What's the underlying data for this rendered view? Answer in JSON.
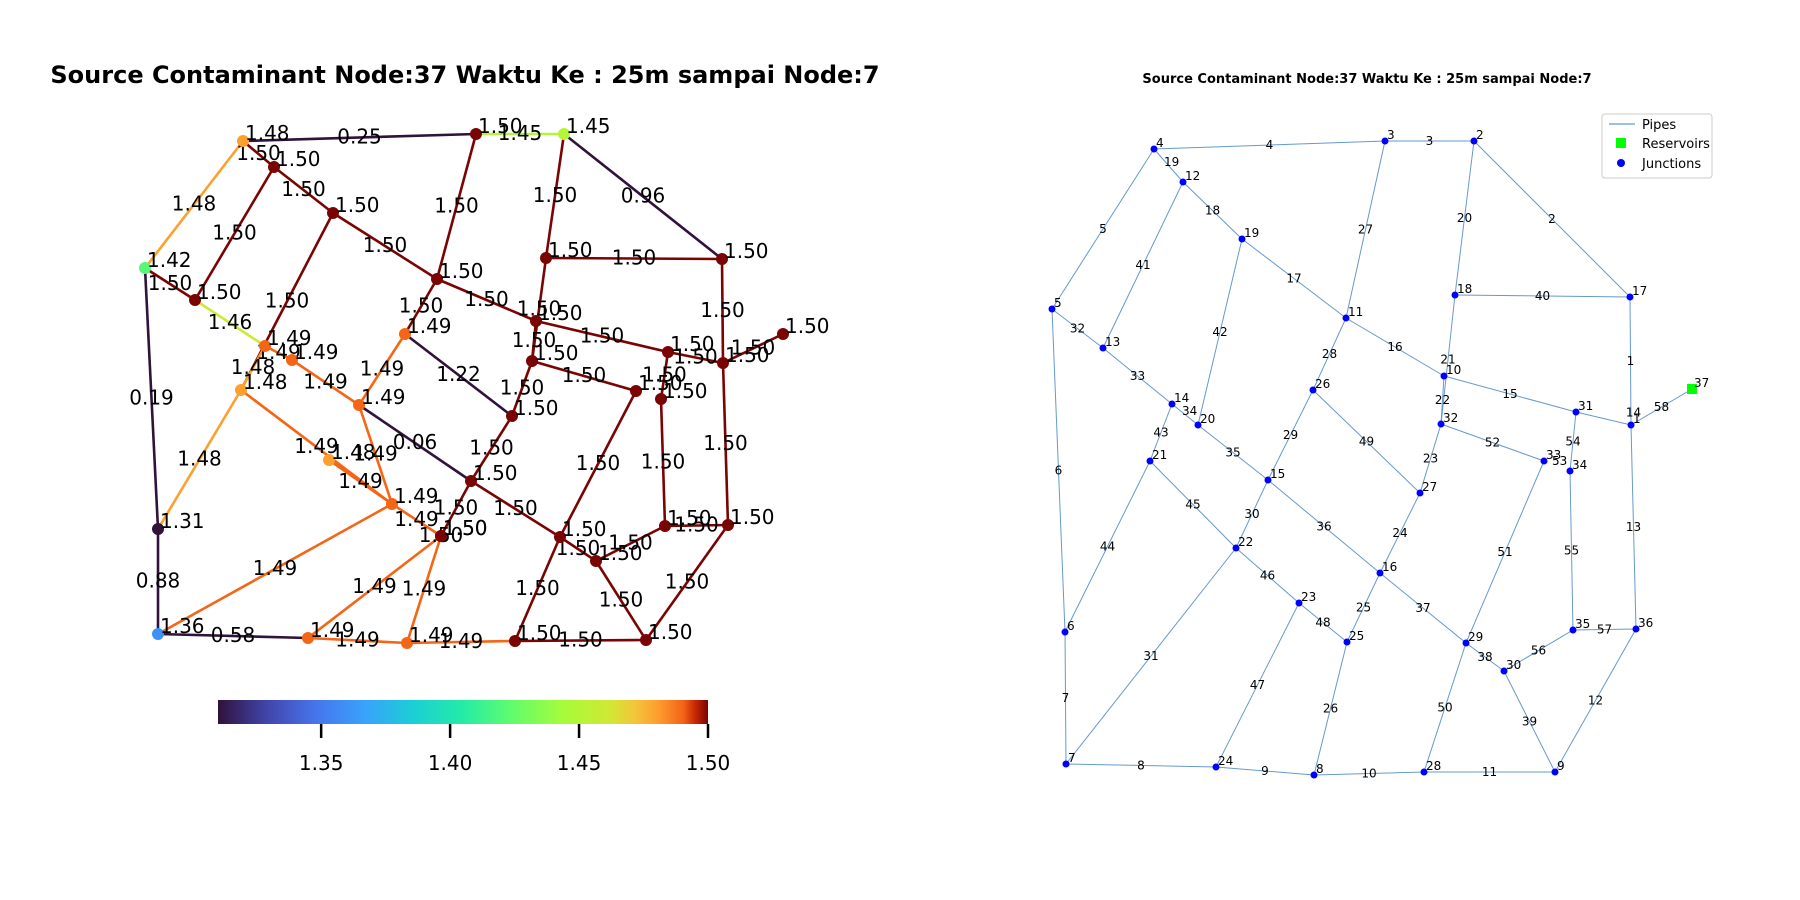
{
  "left_panel": {
    "title": "Source Contaminant Node:37 Waktu Ke : 25m sampai Node:7",
    "nodes": [
      {
        "id": "n_4",
        "value": "1.48",
        "c": 1.48
      },
      {
        "id": "n_3",
        "value": "1.50",
        "c": 1.5
      },
      {
        "id": "n_2",
        "value": "1.45",
        "c": 1.45
      },
      {
        "id": "n_12",
        "value": "1.50",
        "c": 1.5
      },
      {
        "id": "n_19",
        "value": "1.50",
        "c": 1.5
      },
      {
        "id": "n_5",
        "value": "1.42",
        "c": 1.42
      },
      {
        "id": "n_13",
        "value": "1.50",
        "c": 1.5
      },
      {
        "id": "n_11",
        "value": "1.50",
        "c": 1.5
      },
      {
        "id": "n_18",
        "value": "1.50",
        "c": 1.5
      },
      {
        "id": "n_17",
        "value": "1.50",
        "c": 1.5
      },
      {
        "id": "n_37",
        "value": "1.50",
        "c": 1.5
      },
      {
        "id": "n_14",
        "value": "1.49",
        "c": 1.49
      },
      {
        "id": "n_34",
        "value": "1.49",
        "c": 1.49
      },
      {
        "id": "n_20",
        "value": "1.48",
        "c": 1.48
      },
      {
        "id": "n_26",
        "value": "1.49",
        "c": 1.49
      },
      {
        "id": "n_10",
        "value": "1.50",
        "c": 1.5
      },
      {
        "id": "n_32",
        "value": "1.50",
        "c": 1.5
      },
      {
        "id": "n_31",
        "value": "1.50",
        "c": 1.5
      },
      {
        "id": "n_1",
        "value": "1.50",
        "c": 1.5
      },
      {
        "id": "n_21",
        "value": "1.48",
        "c": 1.48
      },
      {
        "id": "n_15",
        "value": "1.49",
        "c": 1.49
      },
      {
        "id": "n_33",
        "value": "1.50",
        "c": 1.5
      },
      {
        "id": "n_34b",
        "value": "1.50",
        "c": 1.5
      },
      {
        "id": "n_27",
        "value": "1.50",
        "c": 1.5
      },
      {
        "id": "n_22",
        "value": "1.49",
        "c": 1.49
      },
      {
        "id": "n_16",
        "value": "1.50",
        "c": 1.5
      },
      {
        "id": "n_23",
        "value": "1.50",
        "c": 1.5
      },
      {
        "id": "n_25",
        "value": "1.50",
        "c": 1.5
      },
      {
        "id": "n_29",
        "value": "1.50",
        "c": 1.5
      },
      {
        "id": "n_30",
        "value": "1.50",
        "c": 1.5
      },
      {
        "id": "n_35",
        "value": "1.50",
        "c": 1.5
      },
      {
        "id": "n_36",
        "value": "1.50",
        "c": 1.5
      },
      {
        "id": "n_6",
        "value": "1.31",
        "c": 1.31
      },
      {
        "id": "n_7",
        "value": "1.36",
        "c": 1.36
      },
      {
        "id": "n_24",
        "value": "1.49",
        "c": 1.49
      },
      {
        "id": "n_8",
        "value": "1.49",
        "c": 1.49
      },
      {
        "id": "n_28",
        "value": "1.50",
        "c": 1.5
      },
      {
        "id": "n_9",
        "value": "1.50",
        "c": 1.5
      }
    ],
    "edges": [
      {
        "from": "n_4",
        "to": "n_3",
        "value": "0.25",
        "c": 0.25
      },
      {
        "from": "n_3",
        "to": "n_2",
        "value": "1.45",
        "c": 1.45
      },
      {
        "from": "n_2",
        "to": "n_17",
        "value": "0.96",
        "c": 0.96
      },
      {
        "from": "n_4",
        "to": "n_12",
        "value": "1.50",
        "c": 1.5
      },
      {
        "from": "n_4",
        "to": "n_5",
        "value": "1.48",
        "c": 1.48
      },
      {
        "from": "n_12",
        "to": "n_19",
        "value": "1.50",
        "c": 1.5
      },
      {
        "from": "n_12",
        "to": "n_13",
        "value": "1.50",
        "c": 1.5
      },
      {
        "from": "n_19",
        "to": "n_11",
        "value": "1.50",
        "c": 1.5
      },
      {
        "from": "n_19",
        "to": "n_20",
        "value": "1.50",
        "c": 1.5
      },
      {
        "from": "n_3",
        "to": "n_11",
        "value": "1.50",
        "c": 1.5
      },
      {
        "from": "n_2",
        "to": "n_18",
        "value": "1.50",
        "c": 1.5
      },
      {
        "from": "n_18",
        "to": "n_17",
        "value": "1.50",
        "c": 1.5
      },
      {
        "from": "n_18",
        "to": "n_32",
        "value": "1.50",
        "c": 1.5
      },
      {
        "from": "n_17",
        "to": "n_1",
        "value": "1.50",
        "c": 1.5
      },
      {
        "from": "n_5",
        "to": "n_13",
        "value": "1.50",
        "c": 1.5
      },
      {
        "from": "n_13",
        "to": "n_14",
        "value": "1.46",
        "c": 1.46
      },
      {
        "from": "n_5",
        "to": "n_6",
        "value": "0.19",
        "c": 0.19
      },
      {
        "from": "n_11",
        "to": "n_10",
        "value": "1.50",
        "c": 1.5
      },
      {
        "from": "n_11",
        "to": "n_26",
        "value": "1.50",
        "c": 1.5
      },
      {
        "from": "n_10",
        "to": "n_31",
        "value": "1.50",
        "c": 1.5
      },
      {
        "from": "n_10",
        "to": "n_32",
        "value": "1.50",
        "c": 1.5
      },
      {
        "from": "n_31",
        "to": "n_1",
        "value": "1.50",
        "c": 1.5
      },
      {
        "from": "n_1",
        "to": "n_37",
        "value": "1.50",
        "c": 1.5
      },
      {
        "from": "n_31",
        "to": "n_34b",
        "value": "1.50",
        "c": 1.5
      },
      {
        "from": "n_14",
        "to": "n_34",
        "value": "1.49",
        "c": 1.49
      },
      {
        "from": "n_34",
        "to": "n_15",
        "value": "1.49",
        "c": 1.49
      },
      {
        "from": "n_14",
        "to": "n_20",
        "value": "1.48",
        "c": 1.48
      },
      {
        "from": "n_20",
        "to": "n_6",
        "value": "1.48",
        "c": 1.48
      },
      {
        "from": "n_20",
        "to": "n_22",
        "value": "1.49",
        "c": 1.49
      },
      {
        "from": "n_26",
        "to": "n_15",
        "value": "1.49",
        "c": 1.49
      },
      {
        "from": "n_26",
        "to": "n_27",
        "value": "1.22",
        "c": 1.22
      },
      {
        "from": "n_32",
        "to": "n_33",
        "value": "1.50",
        "c": 1.5
      },
      {
        "from": "n_32",
        "to": "n_27",
        "value": "1.50",
        "c": 1.5
      },
      {
        "from": "n_33",
        "to": "n_29",
        "value": "1.50",
        "c": 1.5
      },
      {
        "from": "n_34b",
        "to": "n_35",
        "value": "1.50",
        "c": 1.5
      },
      {
        "from": "n_15",
        "to": "n_22",
        "value": "1.49",
        "c": 1.49
      },
      {
        "from": "n_15",
        "to": "n_16",
        "value": "0.06",
        "c": 0.06
      },
      {
        "from": "n_27",
        "to": "n_16",
        "value": "1.50",
        "c": 1.5
      },
      {
        "from": "n_21",
        "to": "n_22",
        "value": "1.49",
        "c": 1.49
      },
      {
        "from": "n_22",
        "to": "n_23",
        "value": "1.49",
        "c": 1.49
      },
      {
        "from": "n_22",
        "to": "n_7",
        "value": "1.49",
        "c": 1.49
      },
      {
        "from": "n_23",
        "to": "n_25",
        "value": "1.50",
        "c": 1.5
      },
      {
        "from": "n_23",
        "to": "n_24",
        "value": "1.49",
        "c": 1.49
      },
      {
        "from": "n_16",
        "to": "n_25",
        "value": "1.50",
        "c": 1.5
      },
      {
        "from": "n_16",
        "to": "n_29",
        "value": "1.50",
        "c": 1.5
      },
      {
        "from": "n_25",
        "to": "n_8",
        "value": "1.49",
        "c": 1.49
      },
      {
        "from": "n_29",
        "to": "n_30",
        "value": "1.50",
        "c": 1.5
      },
      {
        "from": "n_29",
        "to": "n_28",
        "value": "1.50",
        "c": 1.5
      },
      {
        "from": "n_30",
        "to": "n_35",
        "value": "1.50",
        "c": 1.5
      },
      {
        "from": "n_30",
        "to": "n_9",
        "value": "1.50",
        "c": 1.5
      },
      {
        "from": "n_35",
        "to": "n_36",
        "value": "1.50",
        "c": 1.5
      },
      {
        "from": "n_36",
        "to": "n_9",
        "value": "1.50",
        "c": 1.5
      },
      {
        "from": "n_1",
        "to": "n_36",
        "value": "1.50",
        "c": 1.5
      },
      {
        "from": "n_6",
        "to": "n_7",
        "value": "0.88",
        "c": 0.88
      },
      {
        "from": "n_7",
        "to": "n_24",
        "value": "0.58",
        "c": 0.58
      },
      {
        "from": "n_24",
        "to": "n_8",
        "value": "1.49",
        "c": 1.49
      },
      {
        "from": "n_8",
        "to": "n_28",
        "value": "1.49",
        "c": 1.49
      },
      {
        "from": "n_28",
        "to": "n_9",
        "value": "1.50",
        "c": 1.5
      }
    ],
    "colorbar": {
      "min": 1.31,
      "max": 1.5,
      "ticks": [
        "1.35",
        "1.40",
        "1.45",
        "1.50"
      ],
      "colormap": "turbo"
    }
  },
  "right_panel": {
    "title": "Source Contaminant Node:37 Waktu Ke : 25m sampai Node:7",
    "pipe_color": "#6699cc",
    "junction_color": "#0000ff",
    "reservoir_color": "#00ff00",
    "legend": [
      {
        "key": "pipes",
        "label": "Pipes"
      },
      {
        "key": "reservoirs",
        "label": "Reservoirs"
      },
      {
        "key": "junctions",
        "label": "Junctions"
      }
    ],
    "nodes": [
      {
        "id": "4",
        "label": "4"
      },
      {
        "id": "3",
        "label": "3"
      },
      {
        "id": "2",
        "label": "2"
      },
      {
        "id": "12",
        "label": "12"
      },
      {
        "id": "19",
        "label": "19"
      },
      {
        "id": "5",
        "label": "5"
      },
      {
        "id": "13",
        "label": "13"
      },
      {
        "id": "11",
        "label": "11"
      },
      {
        "id": "18",
        "label": "18"
      },
      {
        "id": "17",
        "label": "17"
      },
      {
        "id": "37",
        "label": "37"
      },
      {
        "id": "14",
        "label": "14"
      },
      {
        "id": "20",
        "label": "20"
      },
      {
        "id": "26",
        "label": "26"
      },
      {
        "id": "10",
        "label": "10"
      },
      {
        "id": "32",
        "label": "32"
      },
      {
        "id": "31",
        "label": "31"
      },
      {
        "id": "1",
        "label": "1"
      },
      {
        "id": "21",
        "label": "21"
      },
      {
        "id": "15",
        "label": "15"
      },
      {
        "id": "33",
        "label": "33"
      },
      {
        "id": "34",
        "label": "34"
      },
      {
        "id": "27",
        "label": "27"
      },
      {
        "id": "22",
        "label": "22"
      },
      {
        "id": "16",
        "label": "16"
      },
      {
        "id": "23",
        "label": "23"
      },
      {
        "id": "25",
        "label": "25"
      },
      {
        "id": "29",
        "label": "29"
      },
      {
        "id": "30",
        "label": "30"
      },
      {
        "id": "35",
        "label": "35"
      },
      {
        "id": "36",
        "label": "36"
      },
      {
        "id": "6",
        "label": "6"
      },
      {
        "id": "7",
        "label": "7"
      },
      {
        "id": "24",
        "label": "24"
      },
      {
        "id": "8",
        "label": "8"
      },
      {
        "id": "28",
        "label": "28"
      },
      {
        "id": "9",
        "label": "9"
      }
    ],
    "extra_labels": [
      "19",
      "34",
      "53"
    ],
    "pipes": [
      {
        "from": "4",
        "to": "3",
        "label": "4"
      },
      {
        "from": "3",
        "to": "2",
        "label": "3"
      },
      {
        "from": "2",
        "to": "17",
        "label": "2"
      },
      {
        "from": "4",
        "to": "5",
        "label": "5"
      },
      {
        "from": "4",
        "to": "12",
        "label": ""
      },
      {
        "from": "12",
        "to": "19",
        "label": "18"
      },
      {
        "from": "12",
        "to": "13",
        "label": "41"
      },
      {
        "from": "19",
        "to": "11",
        "label": "17"
      },
      {
        "from": "19",
        "to": "20",
        "label": "42"
      },
      {
        "from": "3",
        "to": "11",
        "label": "27"
      },
      {
        "from": "2",
        "to": "18",
        "label": "20"
      },
      {
        "from": "18",
        "to": "17",
        "label": "40"
      },
      {
        "from": "18",
        "to": "32",
        "label": "21"
      },
      {
        "from": "17",
        "to": "1",
        "label": "1"
      },
      {
        "from": "5",
        "to": "13",
        "label": "32"
      },
      {
        "from": "13",
        "to": "14",
        "label": "33"
      },
      {
        "from": "5",
        "to": "6",
        "label": "6"
      },
      {
        "from": "11",
        "to": "10",
        "label": "16"
      },
      {
        "from": "11",
        "to": "26",
        "label": "28"
      },
      {
        "from": "10",
        "to": "31",
        "label": "15"
      },
      {
        "from": "10",
        "to": "32",
        "label": "22"
      },
      {
        "from": "31",
        "to": "1",
        "label": ""
      },
      {
        "from": "1",
        "to": "37",
        "label": "58"
      },
      {
        "from": "31",
        "to": "34",
        "label": "54"
      },
      {
        "from": "14",
        "to": "20",
        "label": ""
      },
      {
        "from": "14",
        "to": "21",
        "label": "43"
      },
      {
        "from": "20",
        "to": "15",
        "label": "35"
      },
      {
        "from": "21",
        "to": "6",
        "label": "44"
      },
      {
        "from": "21",
        "to": "22",
        "label": "45"
      },
      {
        "from": "26",
        "to": "15",
        "label": "29"
      },
      {
        "from": "26",
        "to": "27",
        "label": "49"
      },
      {
        "from": "32",
        "to": "33",
        "label": "52"
      },
      {
        "from": "32",
        "to": "27",
        "label": "23"
      },
      {
        "from": "33",
        "to": "29",
        "label": "51"
      },
      {
        "from": "34",
        "to": "35",
        "label": "55"
      },
      {
        "from": "15",
        "to": "22",
        "label": "30"
      },
      {
        "from": "15",
        "to": "16",
        "label": "36"
      },
      {
        "from": "27",
        "to": "16",
        "label": "24"
      },
      {
        "from": "22",
        "to": "23",
        "label": "46"
      },
      {
        "from": "22",
        "to": "7",
        "label": "31"
      },
      {
        "from": "23",
        "to": "25",
        "label": "48"
      },
      {
        "from": "23",
        "to": "24",
        "label": "47"
      },
      {
        "from": "16",
        "to": "25",
        "label": "25"
      },
      {
        "from": "16",
        "to": "29",
        "label": "37"
      },
      {
        "from": "25",
        "to": "8",
        "label": "26"
      },
      {
        "from": "29",
        "to": "30",
        "label": "38"
      },
      {
        "from": "29",
        "to": "28",
        "label": "50"
      },
      {
        "from": "30",
        "to": "35",
        "label": "56"
      },
      {
        "from": "30",
        "to": "9",
        "label": "39"
      },
      {
        "from": "35",
        "to": "36",
        "label": "57"
      },
      {
        "from": "36",
        "to": "9",
        "label": "12"
      },
      {
        "from": "1",
        "to": "36",
        "label": "13"
      },
      {
        "from": "6",
        "to": "7",
        "label": "7"
      },
      {
        "from": "7",
        "to": "24",
        "label": "8"
      },
      {
        "from": "24",
        "to": "8",
        "label": "9"
      },
      {
        "from": "8",
        "to": "28",
        "label": "10"
      },
      {
        "from": "28",
        "to": "9",
        "label": "11"
      }
    ],
    "link_labels_extra": [
      "14"
    ]
  }
}
